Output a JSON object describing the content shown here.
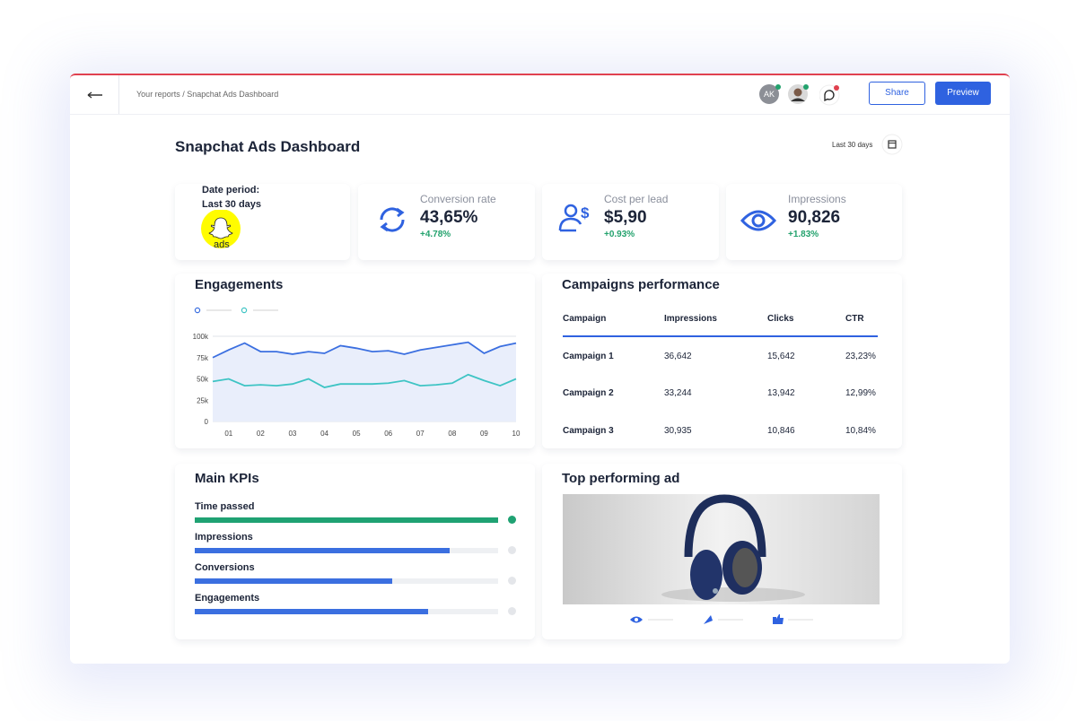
{
  "header": {
    "breadcrumb": "Your reports / Snapchat Ads Dashboard",
    "avatar_initials": "AK",
    "share": "Share",
    "preview": "Preview"
  },
  "dashboard": {
    "title": "Snapchat Ads Dashboard",
    "date_range": "Last 30 days"
  },
  "date_card": {
    "label": "Date period:",
    "value": "Last 30 days",
    "logo_text": "ads"
  },
  "stats": [
    {
      "label": "Conversion rate",
      "value": "43,65%",
      "change": "+4.78%"
    },
    {
      "label": "Cost per lead",
      "value": "$5,90",
      "change": "+0.93%"
    },
    {
      "label": "Impressions",
      "value": "90,826",
      "change": "+1.83%"
    }
  ],
  "engagements": {
    "title": "Engagements",
    "chart": {
      "type": "line",
      "categories": [
        null,
        "01",
        null,
        "02",
        null,
        "03",
        null,
        "04",
        null,
        "05",
        null,
        "06",
        null,
        "07",
        null,
        "08",
        null,
        "09",
        null,
        "10"
      ],
      "series": [
        {
          "color": "#3b6fe0",
          "values": [
            75,
            84,
            92,
            82,
            82,
            79,
            82,
            80,
            89,
            86,
            82,
            83,
            79,
            84,
            87,
            90,
            93,
            80,
            88,
            92
          ]
        },
        {
          "color": "#3ec4c4",
          "values": [
            47,
            50,
            42,
            43,
            42,
            44,
            50,
            40,
            44,
            44,
            44,
            45,
            48,
            42,
            43,
            45,
            55,
            48,
            42,
            50
          ]
        }
      ],
      "ylim": [
        0,
        100
      ],
      "yticks": [
        0,
        {
          "value": 25,
          "label": "25k"
        },
        {
          "value": 50,
          "label": "50k"
        },
        {
          "value": 75,
          "label": "75k"
        },
        {
          "value": 100,
          "label": "100k"
        }
      ],
      "grid": true,
      "area": true
    }
  },
  "campaigns": {
    "title": "Campaigns performance",
    "columns": [
      "Campaign",
      "Impressions",
      "Clicks",
      "CTR"
    ],
    "rows": [
      [
        "Campaign 1",
        "36,642",
        "15,642",
        "23,23%"
      ],
      [
        "Campaign 2",
        "33,244",
        "13,942",
        "12,99%"
      ],
      [
        "Campaign 3",
        "30,935",
        "10,846",
        "10,84%"
      ]
    ]
  },
  "kpis": {
    "title": "Main KPIs",
    "xlim": [
      0,
      100
    ],
    "items": [
      {
        "label": "Time passed",
        "value": 100
      },
      {
        "label": "Impressions",
        "value": 84
      },
      {
        "label": "Conversions",
        "value": 65
      },
      {
        "label": "Engagements",
        "value": 77
      }
    ]
  },
  "top_ad": {
    "title": "Top performing ad"
  }
}
